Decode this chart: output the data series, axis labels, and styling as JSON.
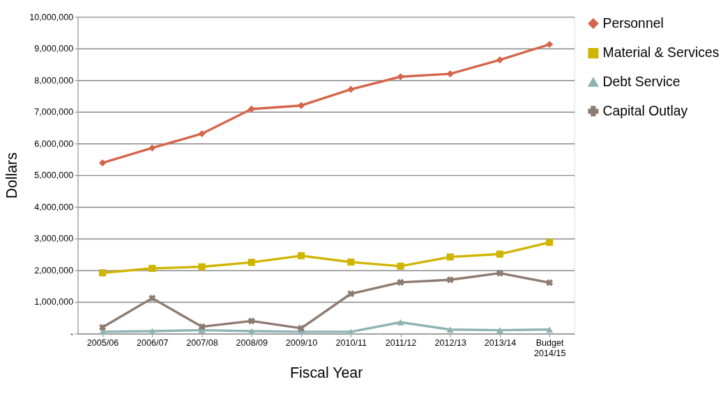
{
  "chart_data": {
    "type": "line",
    "xlabel": "Fiscal Year",
    "ylabel": "Dollars",
    "categories": [
      "2005/06",
      "2006/07",
      "2007/08",
      "2008/09",
      "2009/10",
      "2010/11",
      "2011/12",
      "2012/13",
      "2013/14",
      "Budget 2014/15"
    ],
    "series": [
      {
        "name": "Personnel",
        "color": "#d4654a",
        "marker": "diamond",
        "values": [
          5390000,
          5860000,
          6310000,
          7090000,
          7200000,
          7710000,
          8110000,
          8200000,
          8640000,
          9130000
        ]
      },
      {
        "name": "Material & Services",
        "color": "#cfb400",
        "marker": "square",
        "values": [
          1920000,
          2060000,
          2110000,
          2250000,
          2460000,
          2260000,
          2130000,
          2420000,
          2510000,
          2880000
        ]
      },
      {
        "name": "Debt Service",
        "color": "#8fb3b3",
        "marker": "triangle",
        "values": [
          60000,
          80000,
          110000,
          80000,
          60000,
          60000,
          360000,
          130000,
          110000,
          130000
        ]
      },
      {
        "name": "Capital Outlay",
        "color": "#8c7b70",
        "marker": "cross",
        "values": [
          200000,
          1120000,
          220000,
          400000,
          170000,
          1260000,
          1620000,
          1700000,
          1910000,
          1610000
        ]
      }
    ],
    "ylim": [
      0,
      10000000
    ],
    "yticks": [
      {
        "value": 0,
        "label": "-"
      },
      {
        "value": 1000000,
        "label": "1,000,000"
      },
      {
        "value": 2000000,
        "label": "2,000,000"
      },
      {
        "value": 3000000,
        "label": "3,000,000"
      },
      {
        "value": 4000000,
        "label": "4,000,000"
      },
      {
        "value": 5000000,
        "label": "5,000,000"
      },
      {
        "value": 6000000,
        "label": "6,000,000"
      },
      {
        "value": 7000000,
        "label": "7,000,000"
      },
      {
        "value": 8000000,
        "label": "8,000,000"
      },
      {
        "value": 9000000,
        "label": "9,000,000"
      },
      {
        "value": 10000000,
        "label": "10,000,000"
      }
    ],
    "grid": "y",
    "legend": "right",
    "line_style": "solid"
  }
}
